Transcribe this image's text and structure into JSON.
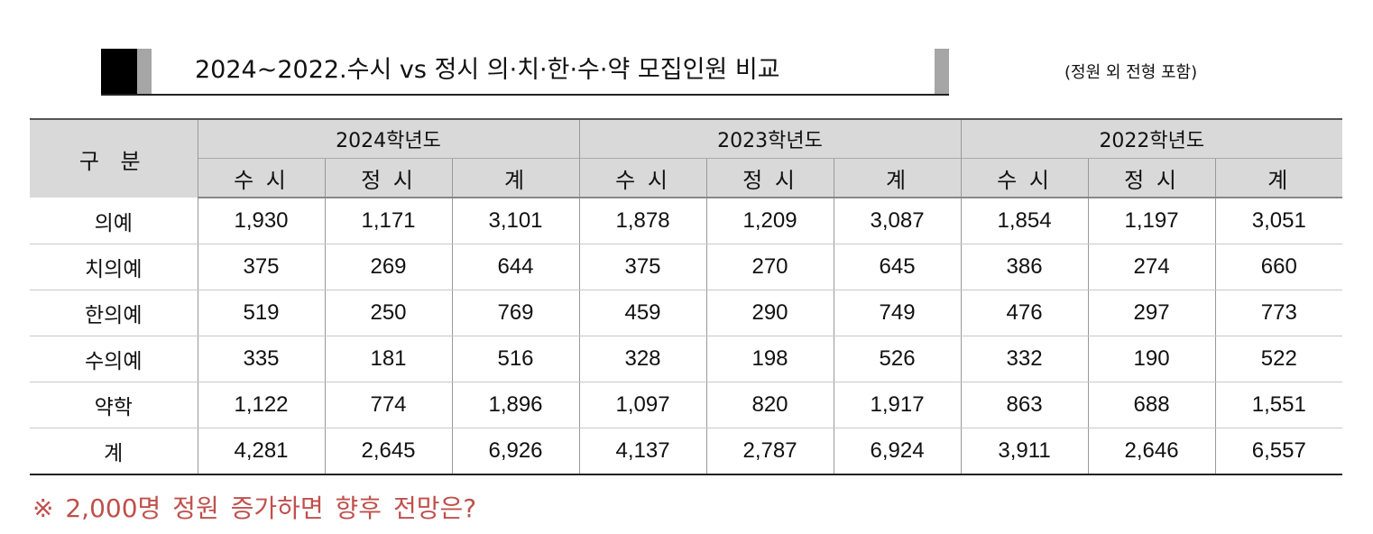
{
  "title": "2024~2022.수시 vs 정시 의·치·한·수·약 모집인원 비교",
  "note": "(정원 외 전형 포함)",
  "table": {
    "corner_label": "구 분",
    "years": [
      "2024학년도",
      "2023학년도",
      "2022학년도"
    ],
    "sub_headers": [
      "수 시",
      "정 시",
      "계"
    ],
    "rows": [
      {
        "label": "의예",
        "values": [
          "1,930",
          "1,171",
          "3,101",
          "1,878",
          "1,209",
          "3,087",
          "1,854",
          "1,197",
          "3,051"
        ]
      },
      {
        "label": "치의예",
        "values": [
          "375",
          "269",
          "644",
          "375",
          "270",
          "645",
          "386",
          "274",
          "660"
        ]
      },
      {
        "label": "한의예",
        "values": [
          "519",
          "250",
          "769",
          "459",
          "290",
          "749",
          "476",
          "297",
          "773"
        ]
      },
      {
        "label": "수의예",
        "values": [
          "335",
          "181",
          "516",
          "328",
          "198",
          "526",
          "332",
          "190",
          "522"
        ]
      },
      {
        "label": "약학",
        "values": [
          "1,122",
          "774",
          "1,896",
          "1,097",
          "820",
          "1,917",
          "863",
          "688",
          "1,551"
        ]
      },
      {
        "label": "계",
        "values": [
          "4,281",
          "2,645",
          "6,926",
          "4,137",
          "2,787",
          "6,924",
          "3,911",
          "2,646",
          "6,557"
        ]
      }
    ]
  },
  "footer": "※ 2,000명 정원 증가하면 향후 전망은?",
  "colors": {
    "header_bg": "#d9d9d9",
    "footer_text": "#c0504d",
    "title_bar_black": "#000000",
    "title_bar_gray": "#a6a6a6"
  }
}
